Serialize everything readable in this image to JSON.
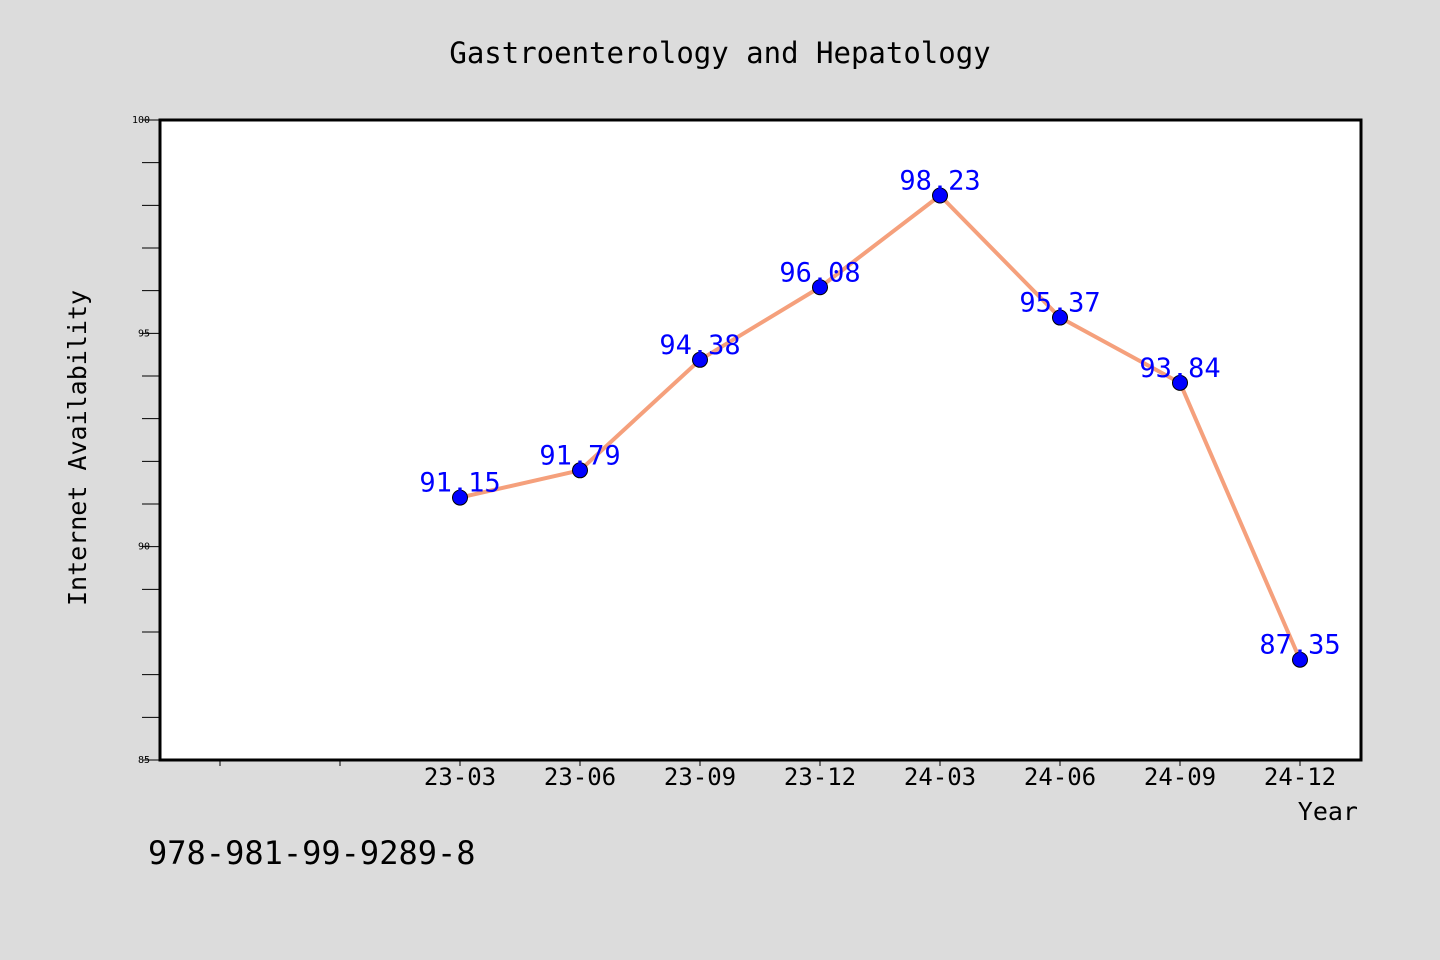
{
  "chart_data": {
    "type": "line",
    "title": "Gastroenterology and Hepatology",
    "xlabel": "Year",
    "ylabel": "Internet Availability",
    "categories": [
      "23-03",
      "23-06",
      "23-09",
      "23-12",
      "24-03",
      "24-06",
      "24-09",
      "24-12"
    ],
    "series": [
      {
        "values": [
          91.15,
          91.79,
          94.38,
          96.08,
          98.23,
          95.37,
          93.84,
          87.35
        ],
        "value_labels": [
          "91.15",
          "91.79",
          "94.38",
          "96.08",
          "98.23",
          "95.37",
          "93.84",
          "87.35"
        ]
      }
    ],
    "ylim": [
      85,
      100
    ],
    "yticks": [
      85,
      90,
      95,
      100
    ],
    "ytick_labels": [
      "85",
      "90",
      "95",
      "100"
    ],
    "grid": false,
    "legend": "none",
    "colors": {
      "line": "#f5a07c",
      "marker": "#0000ff",
      "data_label": "#0000ff",
      "background": "#dcdcdc",
      "plot_area": "#ffffff"
    }
  },
  "footer_text": "978-981-99-9289-8"
}
